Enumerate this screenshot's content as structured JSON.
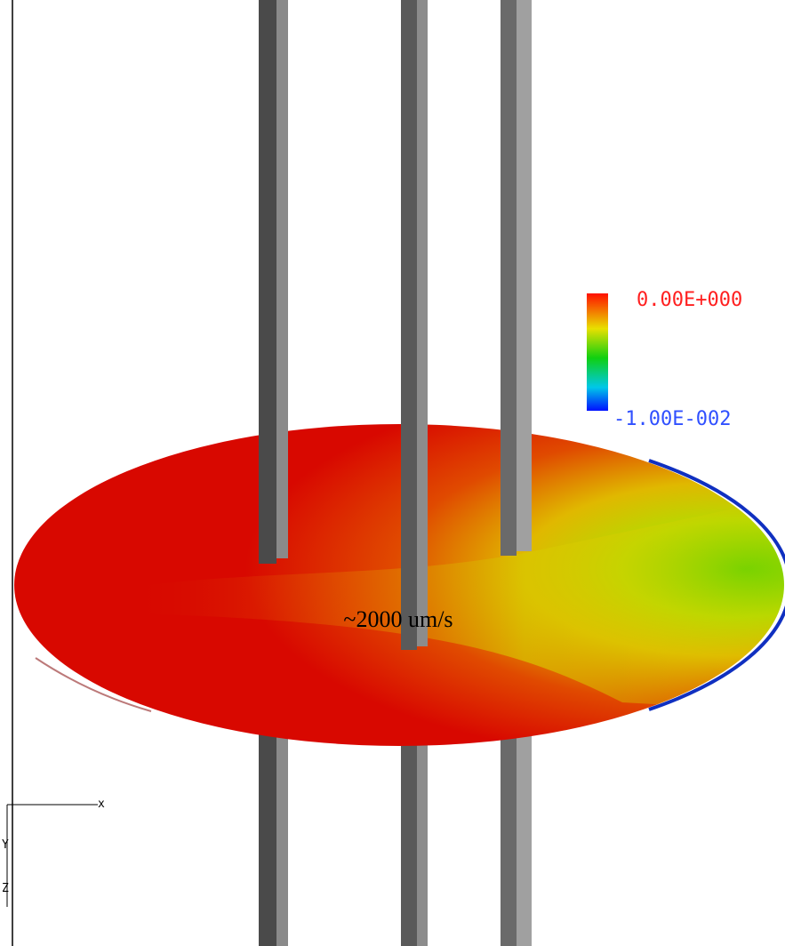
{
  "colorbar": {
    "max_label": "0.00E+000",
    "min_label": "-1.00E-002"
  },
  "annotation": "~2000 um/s",
  "axes": {
    "x": "x",
    "y": "Y",
    "z": "Z"
  }
}
